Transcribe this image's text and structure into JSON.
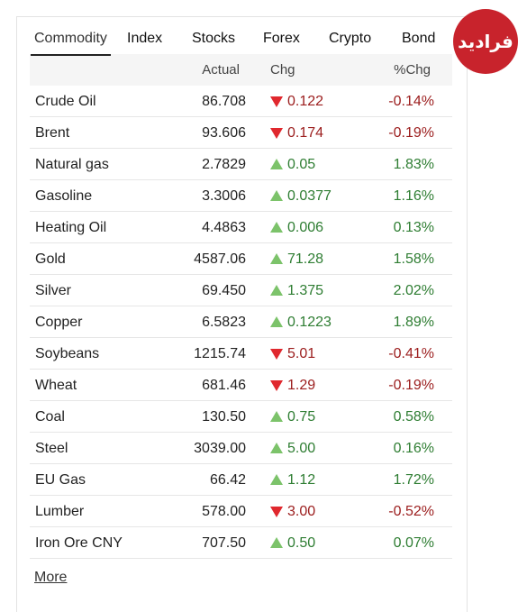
{
  "logo": "فرادید",
  "tabs": [
    "Commodity",
    "Index",
    "Stocks",
    "Forex",
    "Crypto",
    "Bond"
  ],
  "active_tab": 0,
  "table": {
    "columns": [
      "Actual",
      "Chg",
      "%Chg"
    ],
    "rows": [
      {
        "name": "Crude Oil",
        "actual": "86.708",
        "direction": "down",
        "chg": "0.122",
        "pct": "-0.14%"
      },
      {
        "name": "Brent",
        "actual": "93.606",
        "direction": "down",
        "chg": "0.174",
        "pct": "-0.19%"
      },
      {
        "name": "Natural gas",
        "actual": "2.7829",
        "direction": "up",
        "chg": "0.05",
        "pct": "1.83%"
      },
      {
        "name": "Gasoline",
        "actual": "3.3006",
        "direction": "up",
        "chg": "0.0377",
        "pct": "1.16%"
      },
      {
        "name": "Heating Oil",
        "actual": "4.4863",
        "direction": "up",
        "chg": "0.006",
        "pct": "0.13%"
      },
      {
        "name": "Gold",
        "actual": "4587.06",
        "direction": "up",
        "chg": "71.28",
        "pct": "1.58%"
      },
      {
        "name": "Silver",
        "actual": "69.450",
        "direction": "up",
        "chg": "1.375",
        "pct": "2.02%"
      },
      {
        "name": "Copper",
        "actual": "6.5823",
        "direction": "up",
        "chg": "0.1223",
        "pct": "1.89%"
      },
      {
        "name": "Soybeans",
        "actual": "1215.74",
        "direction": "down",
        "chg": "5.01",
        "pct": "-0.41%"
      },
      {
        "name": "Wheat",
        "actual": "681.46",
        "direction": "down",
        "chg": "1.29",
        "pct": "-0.19%"
      },
      {
        "name": "Coal",
        "actual": "130.50",
        "direction": "up",
        "chg": "0.75",
        "pct": "0.58%"
      },
      {
        "name": "Steel",
        "actual": "3039.00",
        "direction": "up",
        "chg": "5.00",
        "pct": "0.16%"
      },
      {
        "name": "EU Gas",
        "actual": "66.42",
        "direction": "up",
        "chg": "1.12",
        "pct": "1.72%"
      },
      {
        "name": "Lumber",
        "actual": "578.00",
        "direction": "down",
        "chg": "3.00",
        "pct": "-0.52%"
      },
      {
        "name": "Iron Ore CNY",
        "actual": "707.50",
        "direction": "up",
        "chg": "0.50",
        "pct": "0.07%"
      }
    ]
  },
  "more": "More"
}
